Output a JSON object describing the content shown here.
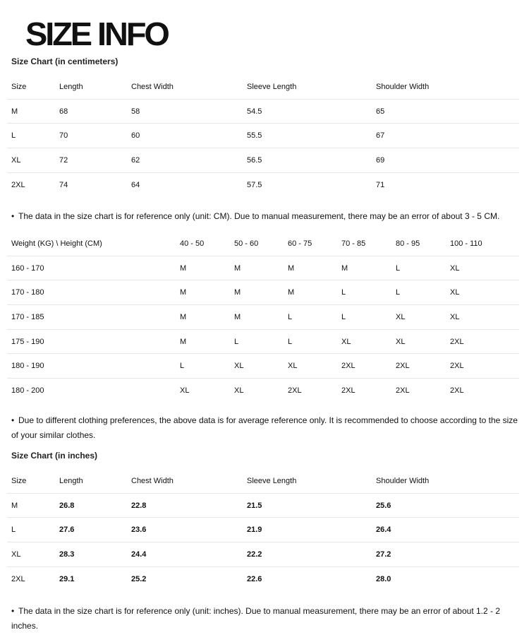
{
  "title": "SIZE INFO",
  "cm_heading": "Size Chart (in centimeters)",
  "cm_table": {
    "headers": [
      "Size",
      "Length",
      "Chest Width",
      "Sleeve Length",
      "Shoulder Width"
    ],
    "rows": [
      [
        "M",
        "68",
        "58",
        "54.5",
        "65"
      ],
      [
        "L",
        "70",
        "60",
        "55.5",
        "67"
      ],
      [
        "XL",
        "72",
        "62",
        "56.5",
        "69"
      ],
      [
        "2XL",
        "74",
        "64",
        "57.5",
        "71"
      ]
    ]
  },
  "note1": "The data in the size chart is for reference only (unit: CM). Due to manual measurement, there may be an error of about 3 - 5 CM.",
  "wh_table": {
    "headers": [
      "Weight (KG) \\ Height (CM)",
      "40 - 50",
      "50 - 60",
      "60 - 75",
      "70 - 85",
      "80 - 95",
      "100 - 110"
    ],
    "rows": [
      [
        "160 - 170",
        "M",
        "M",
        "M",
        "M",
        "L",
        "XL"
      ],
      [
        "170 - 180",
        "M",
        "M",
        "M",
        "L",
        "L",
        "XL"
      ],
      [
        "170 - 185",
        "M",
        "M",
        "L",
        "L",
        "XL",
        "XL"
      ],
      [
        "175 - 190",
        "M",
        "L",
        "L",
        "XL",
        "XL",
        "2XL"
      ],
      [
        "180 - 190",
        "L",
        "XL",
        "XL",
        "2XL",
        "2XL",
        "2XL"
      ],
      [
        "180 - 200",
        "XL",
        "XL",
        "2XL",
        "2XL",
        "2XL",
        "2XL"
      ]
    ]
  },
  "note2": "Due to different clothing preferences, the above data is for average reference only. It is recommended to choose according to the size of your similar clothes.",
  "in_heading": "Size Chart (in inches)",
  "in_table": {
    "headers": [
      "Size",
      "Length",
      "Chest Width",
      "Sleeve Length",
      "Shoulder Width"
    ],
    "rows": [
      [
        "M",
        "26.8",
        "22.8",
        "21.5",
        "25.6"
      ],
      [
        "L",
        "27.6",
        "23.6",
        "21.9",
        "26.4"
      ],
      [
        "XL",
        "28.3",
        "24.4",
        "22.2",
        "27.2"
      ],
      [
        "2XL",
        "29.1",
        "25.2",
        "22.6",
        "28.0"
      ]
    ]
  },
  "note3": "The data in the size chart is for reference only (unit: inches). Due to manual measurement, there may be an error of about 1.2 - 2 inches."
}
